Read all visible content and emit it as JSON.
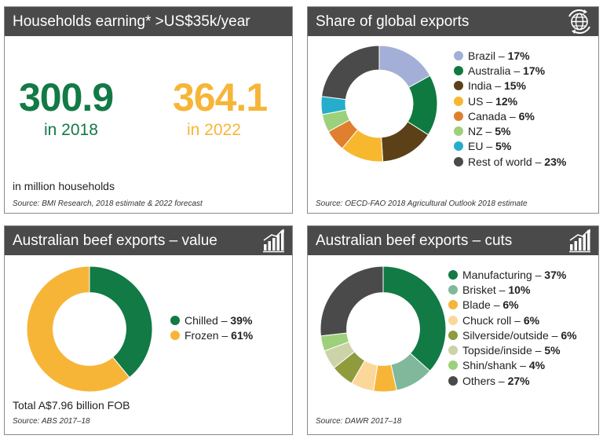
{
  "panels": {
    "households": {
      "title": "Households earning* >US$35k/year",
      "value_2018": "300.9",
      "label_2018": "in 2018",
      "value_2022": "364.1",
      "label_2022": "in 2022",
      "unit_note": "in million households",
      "source": "Source: BMI Research, 2018 estimate & 2022 forecast"
    },
    "exports_share": {
      "title": "Share of global exports",
      "icon": "globe-refresh-icon",
      "source": "Source: OECD-FAO 2018 Agricultural Outlook 2018 estimate"
    },
    "beef_value": {
      "title": "Australian beef exports – value",
      "icon": "bar-growth-icon",
      "total": "Total A$7.96 billion FOB",
      "source": "Source: ABS 2017–18"
    },
    "beef_cuts": {
      "title": "Australian beef exports – cuts",
      "icon": "bar-growth-icon",
      "source": "Source: DAWR 2017–18"
    }
  },
  "colors": {
    "green": "#127a45",
    "gold": "#f7b538",
    "header_bg": "#4a4a4a"
  },
  "chart_data": [
    {
      "id": "global-exports",
      "type": "pie",
      "title": "Share of global exports",
      "series": [
        {
          "name": "Brazil",
          "label": "17%",
          "value": 17,
          "color": "#a4afd8"
        },
        {
          "name": "Australia",
          "label": "17%",
          "value": 17,
          "color": "#0f7a40"
        },
        {
          "name": "India",
          "label": "15%",
          "value": 15,
          "color": "#5c4017"
        },
        {
          "name": "US",
          "label": "12%",
          "value": 12,
          "color": "#f7b830"
        },
        {
          "name": "Canada",
          "label": "6%",
          "value": 6,
          "color": "#e07f2d"
        },
        {
          "name": "NZ",
          "label": "5%",
          "value": 5,
          "color": "#9dd07a"
        },
        {
          "name": "EU",
          "label": "5%",
          "value": 5,
          "color": "#25aecb"
        },
        {
          "name": "Rest of world",
          "label": "23%",
          "value": 23,
          "color": "#4a4a4a"
        }
      ]
    },
    {
      "id": "beef-value",
      "type": "pie",
      "title": "Australian beef exports – value",
      "series": [
        {
          "name": "Chilled",
          "label": "39%",
          "value": 39,
          "color": "#127a45"
        },
        {
          "name": "Frozen",
          "label": "61%",
          "value": 61,
          "color": "#f7b538"
        }
      ]
    },
    {
      "id": "beef-cuts",
      "type": "pie",
      "title": "Australian beef exports – cuts",
      "series": [
        {
          "name": "Manufacturing",
          "label": "37%",
          "value": 37,
          "color": "#127a45"
        },
        {
          "name": "Brisket",
          "label": "10%",
          "value": 10,
          "color": "#7fb89a"
        },
        {
          "name": "Blade",
          "label": "6%",
          "value": 6,
          "color": "#f7b538"
        },
        {
          "name": "Chuck roll",
          "label": "6%",
          "value": 6,
          "color": "#fcd79a"
        },
        {
          "name": "Silverside/outside",
          "label": "6%",
          "value": 6,
          "color": "#8f9b3c"
        },
        {
          "name": "Topside/inside",
          "label": "5%",
          "value": 5,
          "color": "#ccd3a8"
        },
        {
          "name": "Shin/shank",
          "label": "4%",
          "value": 4,
          "color": "#9dd07a"
        },
        {
          "name": "Others",
          "label": "27%",
          "value": 27,
          "color": "#4a4a4a"
        }
      ]
    }
  ]
}
